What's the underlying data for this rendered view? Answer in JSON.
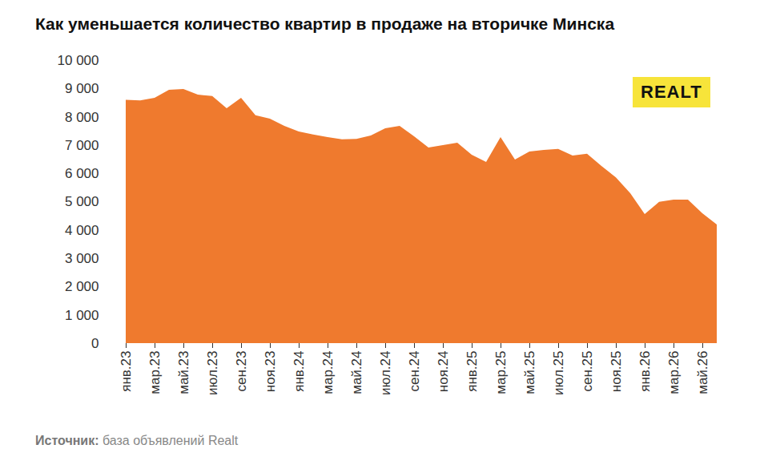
{
  "chart_data": {
    "type": "area",
    "title": "Как уменьшается количество квартир в продаже на вторичке Минска",
    "caption": {
      "label": "Источник:",
      "text": "база объявлений Realt"
    },
    "logo": "REALT",
    "color": "#ef7a2e",
    "grid": false,
    "categories": [
      "янв.23",
      null,
      "мар.23",
      null,
      "май.23",
      null,
      "июл.23",
      null,
      "сен.23",
      null,
      "ноя.23",
      null,
      "янв.24",
      null,
      "мар.24",
      null,
      "май.24",
      null,
      "июл.24",
      null,
      "сен.24",
      null,
      "ноя.24",
      null,
      "янв.25",
      null,
      "мар.25",
      null,
      "май.25",
      null,
      "июл.25",
      null,
      "сен.25",
      null,
      "ноя.25",
      null,
      "янв.26",
      null,
      "мар.26",
      null,
      "май.26",
      null
    ],
    "values": [
      8600,
      8580,
      8670,
      8950,
      8980,
      8780,
      8730,
      8300,
      8670,
      8050,
      7930,
      7680,
      7480,
      7370,
      7280,
      7200,
      7220,
      7340,
      7590,
      7680,
      7310,
      6910,
      7000,
      7080,
      6660,
      6400,
      7280,
      6490,
      6770,
      6830,
      6860,
      6630,
      6690,
      6260,
      5860,
      5300,
      4560,
      4990,
      5070,
      5070,
      4590,
      4190
    ],
    "ylim": [
      0,
      10000
    ],
    "yticks": [
      0,
      {
        "value": 1000,
        "label": "1 000"
      },
      {
        "value": 2000,
        "label": "2 000"
      },
      {
        "value": 3000,
        "label": "3 000"
      },
      {
        "value": 4000,
        "label": "4 000"
      },
      {
        "value": 5000,
        "label": "5 000"
      },
      {
        "value": 6000,
        "label": "6 000"
      },
      {
        "value": 7000,
        "label": "7 000"
      },
      {
        "value": 8000,
        "label": "8 000"
      },
      {
        "value": 9000,
        "label": "9 000"
      },
      {
        "value": 10000,
        "label": "10 000"
      }
    ]
  }
}
